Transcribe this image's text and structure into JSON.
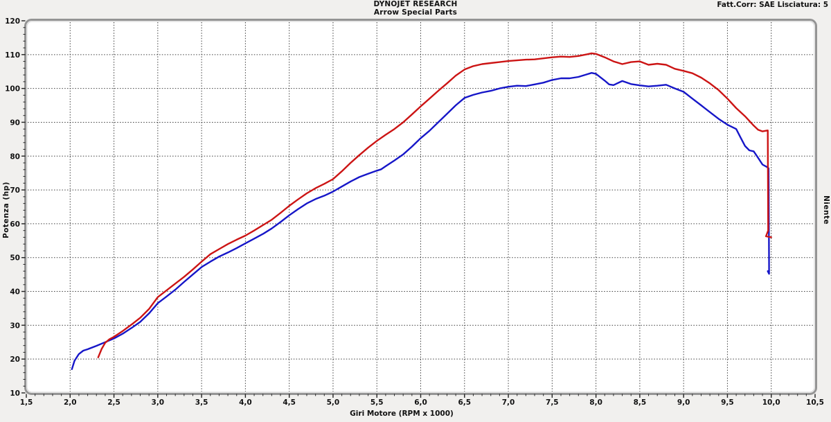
{
  "header": {
    "title_line1": "DYNOJET RESEARCH",
    "title_line2": "Arrow Special Parts",
    "correction_info": "Fatt.Corr: SAE  Lisciatura: 5"
  },
  "right_label": "Niente",
  "colors": {
    "background": "#f1f0ee",
    "plot_background": "#ffffff",
    "frame": "#949494",
    "frame_inner": "#d8d8d8",
    "grid": "#3c3c3c",
    "tick": "#222222",
    "red_series": "#cc1414",
    "blue_series": "#1616c8"
  },
  "chart_data": {
    "type": "line",
    "title": "DYNOJET RESEARCH — Arrow Special Parts",
    "xlabel": "Giri Motore (RPM x 1000)",
    "ylabel": "Potenza (hp)",
    "xlim": [
      1.5,
      10.5
    ],
    "ylim": [
      10,
      120
    ],
    "grid": true,
    "legend_position": "none",
    "x_minor_step": 0.1,
    "y_minor_step": 2,
    "xticks": [
      1.5,
      2.0,
      2.5,
      3.0,
      3.5,
      4.0,
      4.5,
      5.0,
      5.5,
      6.0,
      6.5,
      7.0,
      7.5,
      8.0,
      8.5,
      9.0,
      9.5,
      10.0,
      10.5
    ],
    "xtick_labels": [
      "1,5",
      "2,0",
      "2,5",
      "3,0",
      "3,5",
      "4,0",
      "4,5",
      "5,0",
      "5,5",
      "6,0",
      "6,5",
      "7,0",
      "7,5",
      "8,0",
      "8,5",
      "9,0",
      "9,5",
      "10,0",
      "10,5"
    ],
    "yticks": [
      10,
      20,
      30,
      40,
      50,
      60,
      70,
      80,
      90,
      100,
      110,
      120
    ],
    "ytick_labels": [
      "10",
      "20",
      "30",
      "40",
      "50",
      "60",
      "70",
      "80",
      "90",
      "100",
      "110",
      "120"
    ],
    "series": [
      {
        "name": "blue-run",
        "color": "#1616c8",
        "peak_hp": 104.6,
        "points": [
          [
            2.02,
            17.0
          ],
          [
            2.05,
            19.5
          ],
          [
            2.1,
            21.5
          ],
          [
            2.15,
            22.5
          ],
          [
            2.2,
            22.9
          ],
          [
            2.3,
            23.9
          ],
          [
            2.4,
            25.0
          ],
          [
            2.5,
            26.1
          ],
          [
            2.6,
            27.5
          ],
          [
            2.7,
            29.2
          ],
          [
            2.8,
            31.0
          ],
          [
            2.9,
            33.5
          ],
          [
            3.0,
            36.5
          ],
          [
            3.1,
            38.5
          ],
          [
            3.2,
            40.5
          ],
          [
            3.3,
            42.8
          ],
          [
            3.4,
            45.0
          ],
          [
            3.5,
            47.2
          ],
          [
            3.6,
            48.8
          ],
          [
            3.7,
            50.3
          ],
          [
            3.8,
            51.5
          ],
          [
            3.9,
            52.8
          ],
          [
            4.0,
            54.2
          ],
          [
            4.1,
            55.6
          ],
          [
            4.2,
            57.0
          ],
          [
            4.3,
            58.6
          ],
          [
            4.4,
            60.5
          ],
          [
            4.5,
            62.5
          ],
          [
            4.6,
            64.3
          ],
          [
            4.7,
            66.0
          ],
          [
            4.8,
            67.3
          ],
          [
            4.9,
            68.3
          ],
          [
            5.0,
            69.5
          ],
          [
            5.1,
            71.0
          ],
          [
            5.2,
            72.5
          ],
          [
            5.3,
            73.8
          ],
          [
            5.4,
            74.8
          ],
          [
            5.5,
            75.7
          ],
          [
            5.55,
            76.1
          ],
          [
            5.6,
            77.0
          ],
          [
            5.7,
            78.7
          ],
          [
            5.8,
            80.5
          ],
          [
            5.9,
            82.8
          ],
          [
            6.0,
            85.3
          ],
          [
            6.1,
            87.5
          ],
          [
            6.2,
            90.0
          ],
          [
            6.3,
            92.5
          ],
          [
            6.4,
            95.0
          ],
          [
            6.5,
            97.2
          ],
          [
            6.6,
            98.1
          ],
          [
            6.7,
            98.8
          ],
          [
            6.8,
            99.3
          ],
          [
            6.9,
            100.0
          ],
          [
            7.0,
            100.5
          ],
          [
            7.1,
            100.8
          ],
          [
            7.2,
            100.7
          ],
          [
            7.3,
            101.2
          ],
          [
            7.4,
            101.7
          ],
          [
            7.5,
            102.5
          ],
          [
            7.6,
            103.0
          ],
          [
            7.7,
            103.0
          ],
          [
            7.8,
            103.4
          ],
          [
            7.9,
            104.2
          ],
          [
            7.95,
            104.6
          ],
          [
            8.0,
            104.3
          ],
          [
            8.1,
            102.3
          ],
          [
            8.15,
            101.2
          ],
          [
            8.2,
            101.0
          ],
          [
            8.3,
            102.2
          ],
          [
            8.4,
            101.3
          ],
          [
            8.5,
            100.9
          ],
          [
            8.6,
            100.6
          ],
          [
            8.7,
            100.8
          ],
          [
            8.8,
            101.1
          ],
          [
            8.9,
            100.0
          ],
          [
            9.0,
            99.0
          ],
          [
            9.1,
            97.0
          ],
          [
            9.2,
            95.0
          ],
          [
            9.3,
            93.0
          ],
          [
            9.4,
            91.0
          ],
          [
            9.5,
            89.3
          ],
          [
            9.6,
            88.0
          ],
          [
            9.65,
            85.5
          ],
          [
            9.7,
            83.0
          ],
          [
            9.75,
            81.7
          ],
          [
            9.8,
            81.4
          ],
          [
            9.85,
            79.5
          ],
          [
            9.9,
            77.5
          ],
          [
            9.95,
            76.8
          ],
          [
            9.97,
            76.4
          ],
          [
            9.975,
            45.2
          ],
          [
            9.96,
            46.0
          ]
        ]
      },
      {
        "name": "red-run",
        "color": "#cc1414",
        "peak_hp": 110.4,
        "points": [
          [
            2.32,
            20.5
          ],
          [
            2.36,
            23.0
          ],
          [
            2.4,
            24.8
          ],
          [
            2.45,
            25.9
          ],
          [
            2.5,
            26.6
          ],
          [
            2.6,
            28.3
          ],
          [
            2.7,
            30.2
          ],
          [
            2.8,
            32.2
          ],
          [
            2.9,
            34.8
          ],
          [
            3.0,
            38.3
          ],
          [
            3.1,
            40.3
          ],
          [
            3.2,
            42.3
          ],
          [
            3.3,
            44.3
          ],
          [
            3.4,
            46.5
          ],
          [
            3.5,
            48.8
          ],
          [
            3.6,
            51.0
          ],
          [
            3.7,
            52.5
          ],
          [
            3.8,
            54.0
          ],
          [
            3.9,
            55.3
          ],
          [
            4.0,
            56.5
          ],
          [
            4.1,
            58.0
          ],
          [
            4.2,
            59.6
          ],
          [
            4.3,
            61.2
          ],
          [
            4.4,
            63.2
          ],
          [
            4.5,
            65.3
          ],
          [
            4.6,
            67.2
          ],
          [
            4.7,
            69.0
          ],
          [
            4.8,
            70.5
          ],
          [
            4.9,
            71.8
          ],
          [
            5.0,
            73.2
          ],
          [
            5.1,
            75.5
          ],
          [
            5.2,
            78.0
          ],
          [
            5.3,
            80.3
          ],
          [
            5.4,
            82.5
          ],
          [
            5.5,
            84.5
          ],
          [
            5.6,
            86.3
          ],
          [
            5.7,
            88.0
          ],
          [
            5.8,
            90.0
          ],
          [
            5.9,
            92.3
          ],
          [
            6.0,
            94.7
          ],
          [
            6.1,
            97.0
          ],
          [
            6.2,
            99.3
          ],
          [
            6.3,
            101.5
          ],
          [
            6.4,
            103.8
          ],
          [
            6.5,
            105.6
          ],
          [
            6.6,
            106.6
          ],
          [
            6.7,
            107.2
          ],
          [
            6.8,
            107.5
          ],
          [
            6.9,
            107.8
          ],
          [
            7.0,
            108.1
          ],
          [
            7.1,
            108.3
          ],
          [
            7.2,
            108.5
          ],
          [
            7.3,
            108.6
          ],
          [
            7.4,
            108.9
          ],
          [
            7.5,
            109.2
          ],
          [
            7.6,
            109.4
          ],
          [
            7.7,
            109.3
          ],
          [
            7.8,
            109.6
          ],
          [
            7.9,
            110.1
          ],
          [
            7.95,
            110.4
          ],
          [
            8.0,
            110.2
          ],
          [
            8.1,
            109.2
          ],
          [
            8.2,
            108.0
          ],
          [
            8.3,
            107.2
          ],
          [
            8.4,
            107.8
          ],
          [
            8.5,
            108.0
          ],
          [
            8.6,
            107.0
          ],
          [
            8.7,
            107.3
          ],
          [
            8.8,
            107.0
          ],
          [
            8.9,
            105.8
          ],
          [
            9.0,
            105.2
          ],
          [
            9.1,
            104.5
          ],
          [
            9.2,
            103.2
          ],
          [
            9.3,
            101.5
          ],
          [
            9.4,
            99.5
          ],
          [
            9.5,
            97.0
          ],
          [
            9.6,
            94.2
          ],
          [
            9.7,
            91.8
          ],
          [
            9.8,
            89.0
          ],
          [
            9.85,
            87.8
          ],
          [
            9.9,
            87.3
          ],
          [
            9.96,
            87.6
          ],
          [
            9.965,
            58.0
          ],
          [
            9.94,
            56.3
          ],
          [
            10.0,
            56.0
          ]
        ]
      }
    ]
  }
}
